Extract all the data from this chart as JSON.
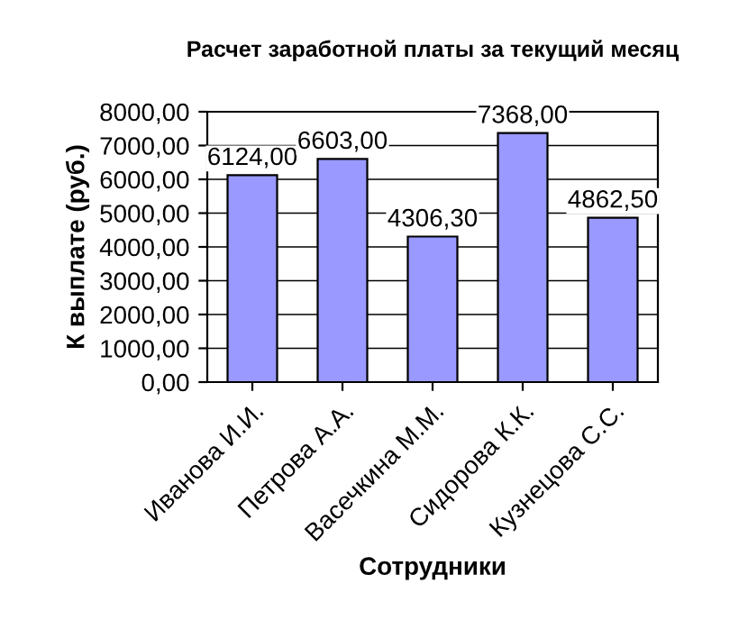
{
  "chart_data": {
    "type": "bar",
    "title": "Расчет заработной платы за текущий месяц",
    "xlabel": "Сотрудники",
    "ylabel": "К выплате (руб.)",
    "categories": [
      "Иванова И.И.",
      "Петрова А.А.",
      "Васечкина М.М.",
      "Сидорова К.К.",
      "Кузнецова С.С."
    ],
    "values": [
      6124,
      6603,
      4306.3,
      7368,
      4862.5
    ],
    "value_labels": [
      "6124,00",
      "6603,00",
      "4306,30",
      "7368,00",
      "4862,50"
    ],
    "color": "#9999ff",
    "ylim": [
      0,
      8000
    ],
    "yticks": [
      {
        "value": 0,
        "label": "0,00"
      },
      {
        "value": 1000,
        "label": "1000,00"
      },
      {
        "value": 2000,
        "label": "2000,00"
      },
      {
        "value": 3000,
        "label": "3000,00"
      },
      {
        "value": 4000,
        "label": "4000,00"
      },
      {
        "value": 5000,
        "label": "5000,00"
      },
      {
        "value": 6000,
        "label": "6000,00"
      },
      {
        "value": 7000,
        "label": "7000,00"
      },
      {
        "value": 8000,
        "label": "8000,00"
      }
    ],
    "grid": "y",
    "legend": false
  }
}
